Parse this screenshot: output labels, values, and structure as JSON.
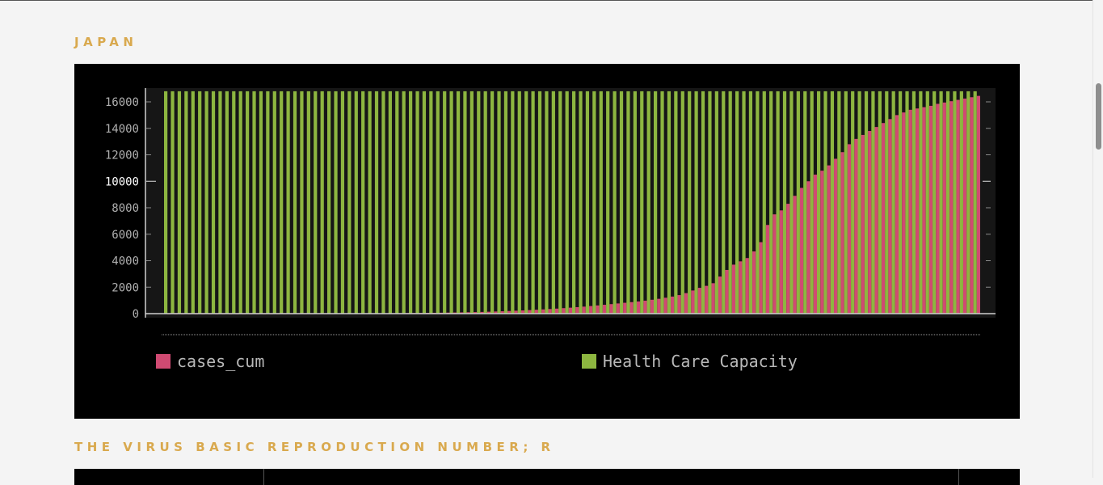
{
  "sections": {
    "japan_title": "JAPAN",
    "r_title": "THE VIRUS BASIC REPRODUCTION NUMBER; R"
  },
  "colors": {
    "cases": "#d04a72",
    "capacity": "#8db640",
    "title": "#d9a94e",
    "panel_bg": "#000000"
  },
  "chart_data": {
    "type": "bar",
    "title": "",
    "xlabel": "",
    "ylabel": "",
    "ylim": [
      0,
      16800
    ],
    "yticks": [
      "0",
      "2000",
      "4000",
      "6000",
      "8000",
      "10000",
      "12000",
      "14000",
      "16000"
    ],
    "grid": false,
    "legend_position": "bottom",
    "n_points": 120,
    "series": [
      {
        "name": "cases_cum",
        "color": "#d04a72",
        "values": [
          1,
          1,
          1,
          2,
          2,
          2,
          2,
          3,
          3,
          3,
          4,
          4,
          4,
          5,
          5,
          6,
          6,
          7,
          8,
          9,
          10,
          11,
          12,
          13,
          14,
          16,
          18,
          20,
          22,
          24,
          27,
          30,
          33,
          36,
          40,
          44,
          48,
          53,
          58,
          64,
          70,
          78,
          86,
          95,
          105,
          117,
          130,
          145,
          162,
          180,
          200,
          222,
          245,
          270,
          295,
          320,
          350,
          380,
          415,
          450,
          490,
          530,
          575,
          620,
          670,
          720,
          770,
          820,
          870,
          920,
          980,
          1050,
          1120,
          1200,
          1290,
          1400,
          1550,
          1750,
          1950,
          2100,
          2300,
          2800,
          3300,
          3700,
          3950,
          4200,
          4700,
          5400,
          6700,
          7500,
          7800,
          8300,
          8900,
          9500,
          10000,
          10500,
          10800,
          11200,
          11700,
          12200,
          12800,
          13200,
          13500,
          13800,
          14100,
          14400,
          14700,
          15000,
          15200,
          15400,
          15500,
          15600,
          15700,
          15850,
          15950,
          16050,
          16150,
          16250,
          16350,
          16450
        ]
      },
      {
        "name": "Health Care Capacity",
        "color": "#8db640",
        "constant": 16800
      }
    ]
  }
}
